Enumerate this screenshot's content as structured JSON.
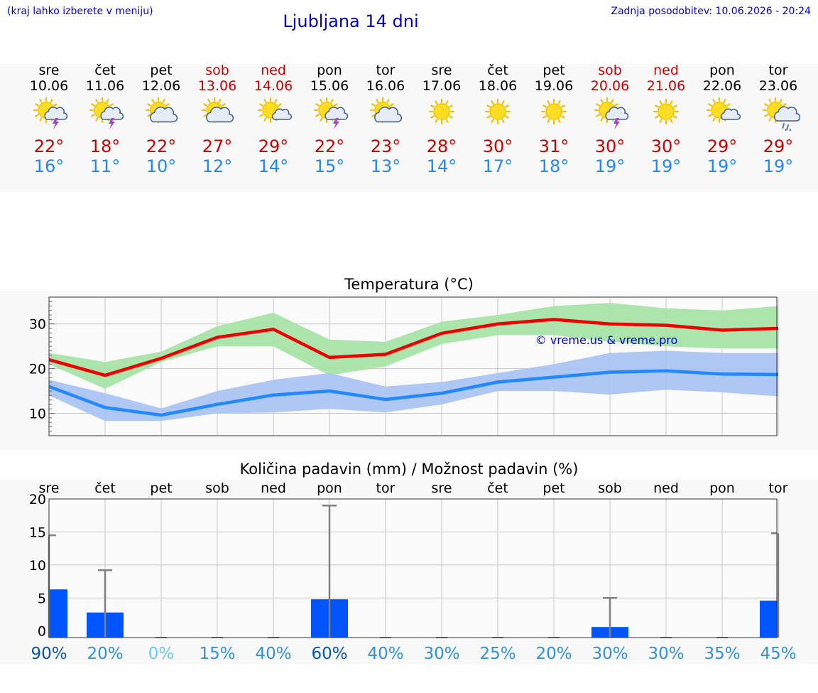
{
  "header": {
    "note": "(kraj lahko izberete v meniju)",
    "title": "Ljubljana 14 dni",
    "updated": "Zadnja posodobitev: 10.06.2026 - 20:24"
  },
  "days": [
    {
      "name": "sre",
      "date": "10.06",
      "weekend": false,
      "icon": "sun-cloud-lightning-icon",
      "tmax": "22°",
      "tmin": "16°"
    },
    {
      "name": "čet",
      "date": "11.06",
      "weekend": false,
      "icon": "sun-cloud-lightning-icon",
      "tmax": "18°",
      "tmin": "11°"
    },
    {
      "name": "pet",
      "date": "12.06",
      "weekend": false,
      "icon": "sun-cloud-icon",
      "tmax": "22°",
      "tmin": "10°"
    },
    {
      "name": "sob",
      "date": "13.06",
      "weekend": true,
      "icon": "sun-cloud-icon",
      "tmax": "27°",
      "tmin": "12°"
    },
    {
      "name": "ned",
      "date": "14.06",
      "weekend": true,
      "icon": "sun-small-cloud-icon",
      "tmax": "29°",
      "tmin": "14°"
    },
    {
      "name": "pon",
      "date": "15.06",
      "weekend": false,
      "icon": "sun-cloud-lightning-icon",
      "tmax": "22°",
      "tmin": "15°"
    },
    {
      "name": "tor",
      "date": "16.06",
      "weekend": false,
      "icon": "sun-cloud-icon",
      "tmax": "23°",
      "tmin": "13°"
    },
    {
      "name": "sre",
      "date": "17.06",
      "weekend": false,
      "icon": "sun-icon",
      "tmax": "28°",
      "tmin": "14°"
    },
    {
      "name": "čet",
      "date": "18.06",
      "weekend": false,
      "icon": "sun-icon",
      "tmax": "30°",
      "tmin": "17°"
    },
    {
      "name": "pet",
      "date": "19.06",
      "weekend": false,
      "icon": "sun-icon",
      "tmax": "31°",
      "tmin": "18°"
    },
    {
      "name": "sob",
      "date": "20.06",
      "weekend": true,
      "icon": "sun-cloud-lightning-icon",
      "tmax": "30°",
      "tmin": "19°"
    },
    {
      "name": "ned",
      "date": "21.06",
      "weekend": true,
      "icon": "sun-icon",
      "tmax": "30°",
      "tmin": "19°"
    },
    {
      "name": "pon",
      "date": "22.06",
      "weekend": false,
      "icon": "sun-small-cloud-icon",
      "tmax": "29°",
      "tmin": "19°"
    },
    {
      "name": "tor",
      "date": "23.06",
      "weekend": false,
      "icon": "sun-cloud-rain-icon",
      "tmax": "29°",
      "tmin": "19°"
    }
  ],
  "colors": {
    "max_line": "#ee0000",
    "max_band": "#a8e4a8",
    "min_line": "#2288ff",
    "min_band": "#aac4f2",
    "bar": "#0055ff",
    "whisker": "#808080",
    "grid": "#c8c8c8"
  },
  "chart_data": [
    {
      "type": "line",
      "title": "Temperatura (°C)",
      "watermark": "© vreme.us & vreme.pro",
      "ylim": [
        5,
        36
      ],
      "yticks": [
        10,
        20,
        30
      ],
      "series": [
        {
          "values": [
            22,
            18.5,
            22.3,
            27,
            28.8,
            22.5,
            23.2,
            27.9,
            30,
            31,
            30,
            29.7,
            28.6,
            29
          ]
        },
        {
          "values": [
            16,
            11.3,
            9.6,
            12,
            14.1,
            15,
            13.1,
            14.5,
            17,
            18.1,
            19.2,
            19.5,
            18.8,
            18.7
          ]
        }
      ],
      "bands": [
        {
          "low": [
            21,
            15.5,
            21.5,
            25,
            25,
            18.5,
            20.5,
            25.5,
            27.5,
            27.5,
            26,
            25,
            24.5,
            24.5
          ],
          "high": [
            23.5,
            21.5,
            23.8,
            29.5,
            32.5,
            26.5,
            26,
            30.5,
            32,
            34,
            34.7,
            33.5,
            33,
            34
          ]
        },
        {
          "low": [
            14,
            8.3,
            8.3,
            10,
            10.2,
            11,
            10.2,
            12,
            15,
            15,
            14.2,
            15.3,
            14.7,
            13.8
          ],
          "high": [
            17.5,
            14.5,
            11.1,
            15,
            17.5,
            19,
            16,
            17,
            19,
            21,
            23.5,
            24,
            23.5,
            23.5
          ]
        }
      ]
    },
    {
      "type": "bar",
      "title": "Količina padavin (mm) / Možnost padavin (%)",
      "categories": [
        "sre",
        "čet",
        "pet",
        "sob",
        "ned",
        "pon",
        "tor",
        "sre",
        "čet",
        "pet",
        "sob",
        "ned",
        "pon",
        "tor"
      ],
      "values": [
        6.3,
        2.8,
        0,
        0,
        0,
        4.8,
        0,
        0,
        0,
        0,
        0.6,
        0,
        0,
        4.6
      ],
      "whisker_high": [
        14.5,
        9.2,
        0,
        0,
        0,
        19,
        0,
        0,
        0,
        0,
        5,
        0,
        0,
        14.8
      ],
      "chance": [
        "90%",
        "20%",
        "0%",
        "15%",
        "40%",
        "60%",
        "40%",
        "30%",
        "25%",
        "20%",
        "30%",
        "30%",
        "35%",
        "45%"
      ],
      "ylim": [
        -1,
        20
      ],
      "yticks": [
        0,
        5,
        10,
        15,
        20
      ]
    }
  ]
}
